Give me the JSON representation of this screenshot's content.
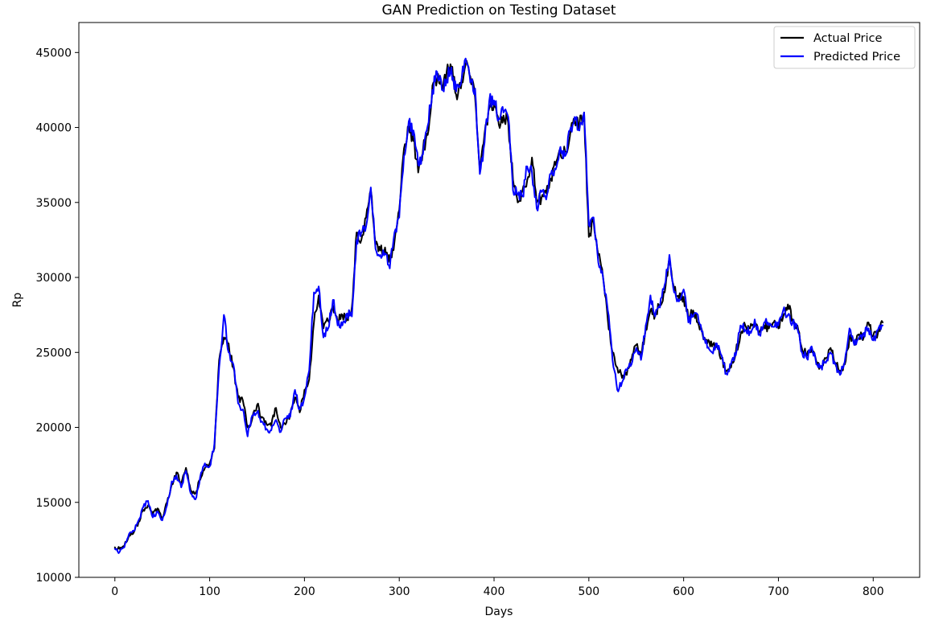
{
  "colors": {
    "actual": "#000000",
    "predicted": "#0000ff",
    "background": "#ffffff"
  },
  "chart_data": {
    "type": "line",
    "title": "GAN Prediction on Testing Dataset",
    "xlabel": "Days",
    "ylabel": "Rp",
    "xlim": [
      -38,
      849
    ],
    "ylim": [
      10000,
      47000
    ],
    "xticks": [
      0,
      100,
      200,
      300,
      400,
      500,
      600,
      700,
      800
    ],
    "yticks": [
      10000,
      15000,
      20000,
      25000,
      30000,
      35000,
      40000,
      45000
    ],
    "grid": false,
    "legend_position": "top-right",
    "keypoints_x": [
      0,
      5,
      10,
      15,
      20,
      25,
      30,
      35,
      40,
      45,
      50,
      55,
      60,
      65,
      70,
      75,
      80,
      85,
      90,
      95,
      100,
      105,
      110,
      115,
      120,
      125,
      130,
      135,
      140,
      145,
      150,
      155,
      160,
      165,
      170,
      175,
      180,
      185,
      190,
      195,
      200,
      205,
      210,
      215,
      220,
      225,
      230,
      235,
      240,
      245,
      250,
      255,
      260,
      265,
      270,
      275,
      280,
      285,
      290,
      295,
      300,
      305,
      310,
      315,
      320,
      325,
      330,
      335,
      340,
      345,
      350,
      355,
      360,
      365,
      370,
      375,
      380,
      385,
      390,
      395,
      400,
      405,
      410,
      415,
      420,
      425,
      430,
      435,
      440,
      445,
      450,
      455,
      460,
      465,
      470,
      475,
      480,
      485,
      490,
      495,
      500,
      505,
      510,
      515,
      520,
      525,
      530,
      535,
      540,
      545,
      550,
      555,
      560,
      565,
      570,
      575,
      580,
      585,
      590,
      595,
      600,
      605,
      610,
      615,
      620,
      625,
      630,
      635,
      640,
      645,
      650,
      655,
      660,
      665,
      670,
      675,
      680,
      685,
      690,
      695,
      700,
      705,
      710,
      715,
      720,
      725,
      730,
      735,
      740,
      745,
      750,
      755,
      760,
      765,
      770,
      775,
      780,
      785,
      790,
      795,
      800,
      805,
      810
    ],
    "series": [
      {
        "name": "Actual Price",
        "color": "#000000",
        "values": [
          12000,
          11900,
          12100,
          12800,
          13000,
          13700,
          14500,
          14800,
          14200,
          14600,
          14000,
          15000,
          16200,
          17000,
          16300,
          17300,
          15800,
          15600,
          16500,
          17300,
          17600,
          18600,
          24500,
          26000,
          25600,
          24000,
          22000,
          21800,
          20000,
          20600,
          21500,
          20700,
          20200,
          20100,
          21300,
          20000,
          20200,
          20900,
          22000,
          21000,
          22500,
          23200,
          27000,
          28800,
          26600,
          27100,
          28100,
          27000,
          27500,
          27300,
          28000,
          33000,
          32500,
          34000,
          35800,
          32200,
          31800,
          32000,
          31000,
          32400,
          34500,
          38600,
          40100,
          39100,
          37000,
          38500,
          39500,
          42800,
          43200,
          42700,
          43700,
          44000,
          42200,
          42600,
          44200,
          43400,
          42000,
          37200,
          39600,
          41300,
          41500,
          40200,
          40800,
          40300,
          36500,
          35000,
          35800,
          36500,
          38000,
          35000,
          35300,
          35600,
          36600,
          37500,
          38200,
          38400,
          39400,
          40600,
          40200,
          41000,
          32700,
          33800,
          31500,
          30000,
          27200,
          25000,
          24000,
          23300,
          23500,
          24500,
          25500,
          24800,
          26500,
          27800,
          27500,
          28200,
          29000,
          31300,
          29200,
          28600,
          28700,
          27300,
          27800,
          27000,
          26200,
          25600,
          25400,
          25500,
          24600,
          23800,
          24000,
          25000,
          26200,
          26800,
          26600,
          27000,
          26400,
          26800,
          26600,
          27000,
          26600,
          27400,
          28200,
          27200,
          26800,
          25200,
          24800,
          25200,
          24400,
          24000,
          24600,
          25300,
          24300,
          23800,
          24200,
          26000,
          25700,
          26200,
          26000,
          27000,
          26100,
          26300,
          27000,
          27000,
          27800
        ]
      },
      {
        "name": "Predicted Price",
        "color": "#0000ff",
        "values": [
          11900,
          11700,
          12000,
          12900,
          13100,
          13800,
          14700,
          15100,
          14000,
          14400,
          13800,
          14800,
          16400,
          16800,
          16000,
          17100,
          15600,
          15200,
          16700,
          17600,
          17400,
          18900,
          24000,
          27500,
          25000,
          24200,
          21600,
          21200,
          19400,
          20800,
          21000,
          20400,
          19900,
          19800,
          20500,
          19700,
          20600,
          20700,
          22500,
          21200,
          22000,
          23800,
          29000,
          29400,
          26000,
          26600,
          28500,
          26800,
          26800,
          27600,
          27400,
          32500,
          33000,
          33400,
          36000,
          31900,
          31500,
          31600,
          30600,
          33000,
          34000,
          38100,
          40400,
          39800,
          37500,
          38200,
          40100,
          42500,
          43700,
          42500,
          43200,
          44000,
          42400,
          42900,
          44600,
          43000,
          42600,
          36900,
          39000,
          41800,
          41800,
          40600,
          41000,
          40700,
          35800,
          35500,
          35400,
          37400,
          37000,
          34600,
          35700,
          35200,
          36900,
          37200,
          38700,
          38100,
          39800,
          40700,
          39800,
          41000,
          33500,
          34000,
          31000,
          30000,
          27800,
          24500,
          22500,
          23000,
          23800,
          24200,
          25300,
          24500,
          26800,
          28800,
          27400,
          28000,
          29500,
          31500,
          29000,
          28400,
          29200,
          27000,
          27400,
          27500,
          26400,
          25300,
          25000,
          25600,
          24800,
          23600,
          24200,
          24800,
          26800,
          26500,
          26400,
          27200,
          26200,
          27000,
          26800,
          26700,
          26800,
          27800,
          27500,
          27000,
          26600,
          25000,
          24600,
          25400,
          24200,
          24100,
          24300,
          25000,
          24200,
          23500,
          24400,
          26600,
          25500,
          26000,
          26300,
          26600,
          25800,
          26500,
          26800,
          26900,
          27100
        ]
      }
    ]
  }
}
